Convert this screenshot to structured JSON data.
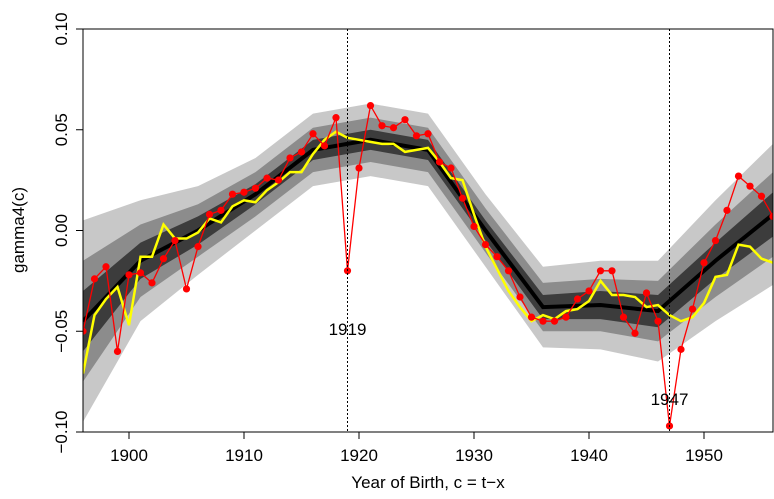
{
  "chart_data": {
    "type": "line",
    "x_label": "Year of Birth, c = t−x",
    "y_label": "gamma4(c)",
    "xlim": [
      1896,
      1956
    ],
    "ylim": [
      -0.1,
      0.1
    ],
    "xticks": [
      1900,
      1910,
      1920,
      1930,
      1940,
      1950
    ],
    "yticks": [
      {
        "value": -0.1,
        "label": "−0.10"
      },
      {
        "value": -0.05,
        "label": "−0.05"
      },
      {
        "value": 0,
        "label": "0.00"
      },
      {
        "value": 0.05,
        "label": "0.05"
      },
      {
        "value": 0.1,
        "label": "0.10"
      }
    ],
    "vlines": [
      1919,
      1947
    ],
    "fan": {
      "x": [
        1896,
        1901,
        1906,
        1911,
        1916,
        1921,
        1926,
        1931,
        1936,
        1941,
        1946,
        1951,
        1956
      ],
      "center": [
        -0.045,
        -0.015,
        0,
        0.018,
        0.04,
        0.045,
        0.04,
        0,
        -0.038,
        -0.037,
        -0.04,
        -0.015,
        0.008
      ],
      "center_color": "#000000",
      "bands": [
        {
          "color": "#c8c8c8",
          "lower": [
            -0.095,
            -0.045,
            -0.022,
            0,
            0.022,
            0.027,
            0.022,
            -0.018,
            -0.058,
            -0.059,
            -0.065,
            -0.045,
            -0.027
          ],
          "upper": [
            0.005,
            0.015,
            0.022,
            0.036,
            0.058,
            0.063,
            0.058,
            0.018,
            -0.018,
            -0.015,
            -0.015,
            0.015,
            0.043
          ]
        },
        {
          "color": "#8c8c8c",
          "lower": [
            -0.075,
            -0.033,
            -0.013,
            0.007,
            0.029,
            0.034,
            0.029,
            -0.011,
            -0.05,
            -0.05,
            -0.055,
            -0.033,
            -0.013
          ],
          "upper": [
            -0.015,
            0.003,
            0.013,
            0.029,
            0.051,
            0.056,
            0.051,
            0.011,
            -0.026,
            -0.024,
            -0.025,
            0.003,
            0.029
          ]
        },
        {
          "color": "#3c3c3c",
          "lower": [
            -0.06,
            -0.024,
            -0.007,
            0.013,
            0.035,
            0.04,
            0.035,
            -0.005,
            -0.044,
            -0.044,
            -0.048,
            -0.024,
            -0.003
          ],
          "upper": [
            -0.03,
            -0.006,
            0.007,
            0.023,
            0.045,
            0.05,
            0.045,
            0.005,
            -0.032,
            -0.03,
            -0.032,
            -0.006,
            0.019
          ]
        }
      ]
    },
    "x": [
      1896,
      1897,
      1898,
      1899,
      1900,
      1901,
      1902,
      1903,
      1904,
      1905,
      1906,
      1907,
      1908,
      1909,
      1910,
      1911,
      1912,
      1913,
      1914,
      1915,
      1916,
      1917,
      1918,
      1919,
      1920,
      1921,
      1922,
      1923,
      1924,
      1925,
      1926,
      1927,
      1928,
      1929,
      1930,
      1931,
      1932,
      1933,
      1934,
      1935,
      1936,
      1937,
      1938,
      1939,
      1940,
      1941,
      1942,
      1943,
      1944,
      1945,
      1946,
      1947,
      1948,
      1949,
      1950,
      1951,
      1952,
      1953,
      1954,
      1955,
      1956
    ],
    "series": [
      {
        "color": "#ffff00",
        "markers": false,
        "values": [
          -0.071,
          -0.042,
          -0.034,
          -0.028,
          -0.047,
          -0.013,
          -0.013,
          0.003,
          -0.004,
          -0.004,
          -0.001,
          0.006,
          0.004,
          0.012,
          0.015,
          0.014,
          0.02,
          0.024,
          0.029,
          0.029,
          0.038,
          0.045,
          0.049,
          0.046,
          0.045,
          0.044,
          0.043,
          0.043,
          0.039,
          0.04,
          0.041,
          0.034,
          0.026,
          0.025,
          0.008,
          -0.008,
          -0.019,
          -0.03,
          -0.038,
          -0.045,
          -0.042,
          -0.044,
          -0.04,
          -0.039,
          -0.035,
          -0.025,
          -0.032,
          -0.032,
          -0.033,
          -0.038,
          -0.037,
          -0.042,
          -0.045,
          -0.043,
          -0.036,
          -0.023,
          -0.022,
          -0.007,
          -0.008,
          -0.014,
          -0.016
        ]
      },
      {
        "color": "#ff0000",
        "markers": true,
        "values": [
          -0.05,
          -0.024,
          -0.018,
          -0.06,
          -0.022,
          -0.021,
          -0.026,
          -0.014,
          -0.005,
          -0.029,
          -0.008,
          0.008,
          0.01,
          0.018,
          0.019,
          0.021,
          0.026,
          0.025,
          0.036,
          0.039,
          0.048,
          0.042,
          0.056,
          -0.02,
          0.031,
          0.062,
          0.052,
          0.051,
          0.055,
          0.047,
          0.048,
          0.034,
          0.031,
          0.016,
          0.002,
          -0.007,
          -0.013,
          -0.02,
          -0.033,
          -0.043,
          -0.045,
          -0.045,
          -0.043,
          -0.034,
          -0.03,
          -0.02,
          -0.02,
          -0.043,
          -0.051,
          -0.031,
          -0.045,
          -0.097,
          -0.059,
          -0.039,
          -0.016,
          -0.005,
          0.01,
          0.027,
          0.022,
          0.017,
          0.007
        ]
      }
    ]
  }
}
